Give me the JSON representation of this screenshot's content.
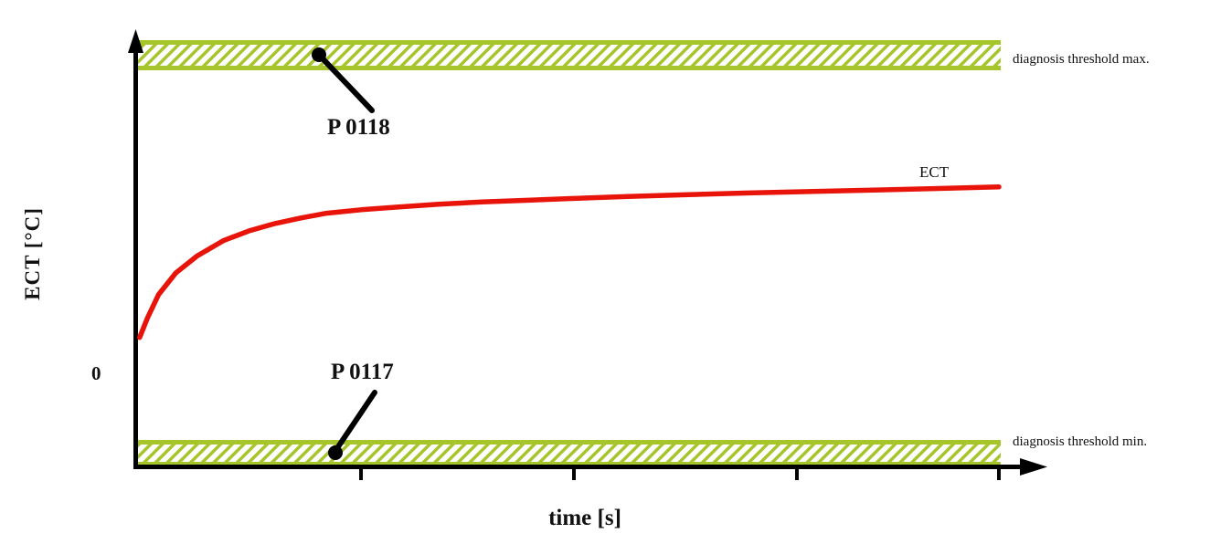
{
  "labels": {
    "y_axis": "ECT [°C]",
    "x_axis": "time [s]",
    "zero": "0",
    "p0118": "P 0118",
    "p0117": "P 0117",
    "threshold_max": "diagnosis threshold max.",
    "threshold_min": "diagnosis threshold min.",
    "curve": "ECT"
  },
  "colors": {
    "curve_red": "#e81309",
    "band_green": "#a5c52b",
    "axis_black": "#000000",
    "background": "#ffffff"
  },
  "chart_data": {
    "type": "line",
    "title": "",
    "xlabel": "time [s]",
    "ylabel": "ECT [°C]",
    "grid": false,
    "legend": "none",
    "axes_note": "both axes are qualitative (no numeric tick labels); only '0' is marked on the ECT axis; coordinates below are fractions of the plot area (x: 0=axis origin, 1=right end of bands; y: 0=x-axis baseline, 1=top of plot)",
    "y_zero_frac": 0.214,
    "thresholds": [
      {
        "label": "diagnosis threshold max.",
        "fault_code": "P 0118",
        "y_frac": 0.957,
        "style": "hatched green band"
      },
      {
        "label": "diagnosis threshold min.",
        "fault_code": "P 0117",
        "y_frac": 0.032,
        "style": "hatched green band"
      }
    ],
    "series": [
      {
        "name": "ECT",
        "points": [
          [
            0.003,
            0.3
          ],
          [
            0.012,
            0.345
          ],
          [
            0.025,
            0.4
          ],
          [
            0.045,
            0.45
          ],
          [
            0.07,
            0.49
          ],
          [
            0.1,
            0.525
          ],
          [
            0.13,
            0.548
          ],
          [
            0.16,
            0.565
          ],
          [
            0.19,
            0.578
          ],
          [
            0.22,
            0.589
          ],
          [
            0.26,
            0.597
          ],
          [
            0.3,
            0.603
          ],
          [
            0.35,
            0.61
          ],
          [
            0.4,
            0.615
          ],
          [
            0.45,
            0.619
          ],
          [
            0.5,
            0.623
          ],
          [
            0.57,
            0.628
          ],
          [
            0.64,
            0.632
          ],
          [
            0.71,
            0.636
          ],
          [
            0.79,
            0.64
          ],
          [
            0.86,
            0.643
          ],
          [
            0.92,
            0.646
          ],
          [
            1.0,
            0.65
          ]
        ]
      }
    ],
    "annotations": [
      {
        "text": "P 0118",
        "refers_to": "diagnosis threshold max. band"
      },
      {
        "text": "P 0117",
        "refers_to": "diagnosis threshold min. band"
      }
    ]
  }
}
